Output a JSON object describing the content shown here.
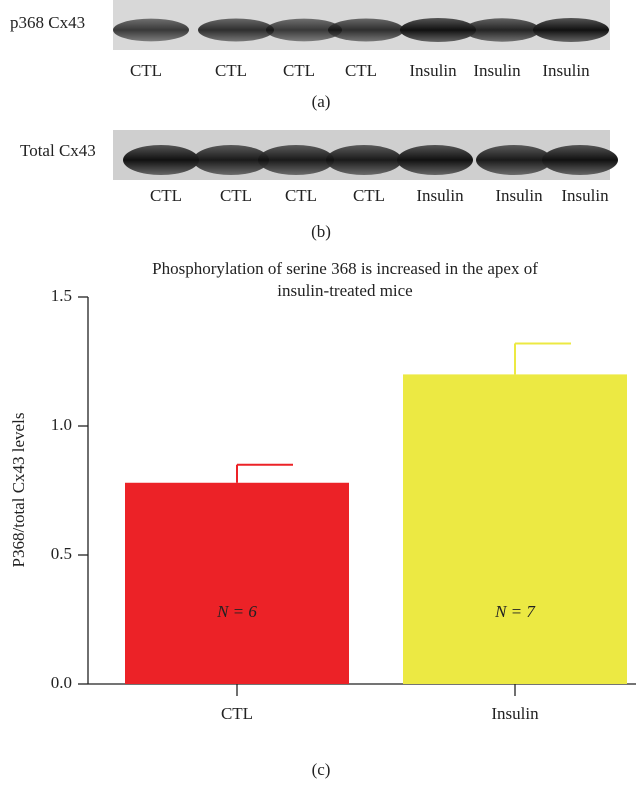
{
  "blots": [
    {
      "label": "p368 Cx43",
      "lanes": [
        "CTL",
        "CTL",
        "CTL",
        "CTL",
        "Insulin",
        "Insulin",
        "Insulin"
      ],
      "caption": "(a)"
    },
    {
      "label": "Total Cx43",
      "lanes": [
        "CTL",
        "CTL",
        "CTL",
        "CTL",
        "Insulin",
        "Insulin",
        "Insulin"
      ],
      "caption": "(b)"
    }
  ],
  "chart_data": {
    "type": "bar",
    "title": [
      "Phosphorylation of serine 368 is increased in the apex of",
      "insulin-treated mice"
    ],
    "ylabel": "P368/total Cx43 levels",
    "categories": [
      "CTL",
      "Insulin"
    ],
    "values": [
      0.78,
      1.2
    ],
    "errors": [
      0.07,
      0.12
    ],
    "colors": [
      "#ec2227",
      "#ece943"
    ],
    "bar_labels": [
      "N = 6",
      "N = 7"
    ],
    "ylim": [
      0,
      1.5
    ],
    "yticks": [
      {
        "value": 0,
        "label": "0.0"
      },
      {
        "value": 0.5,
        "label": "0.5"
      },
      {
        "value": 1,
        "label": "1.0"
      },
      1.5
    ],
    "caption": "(c)"
  }
}
